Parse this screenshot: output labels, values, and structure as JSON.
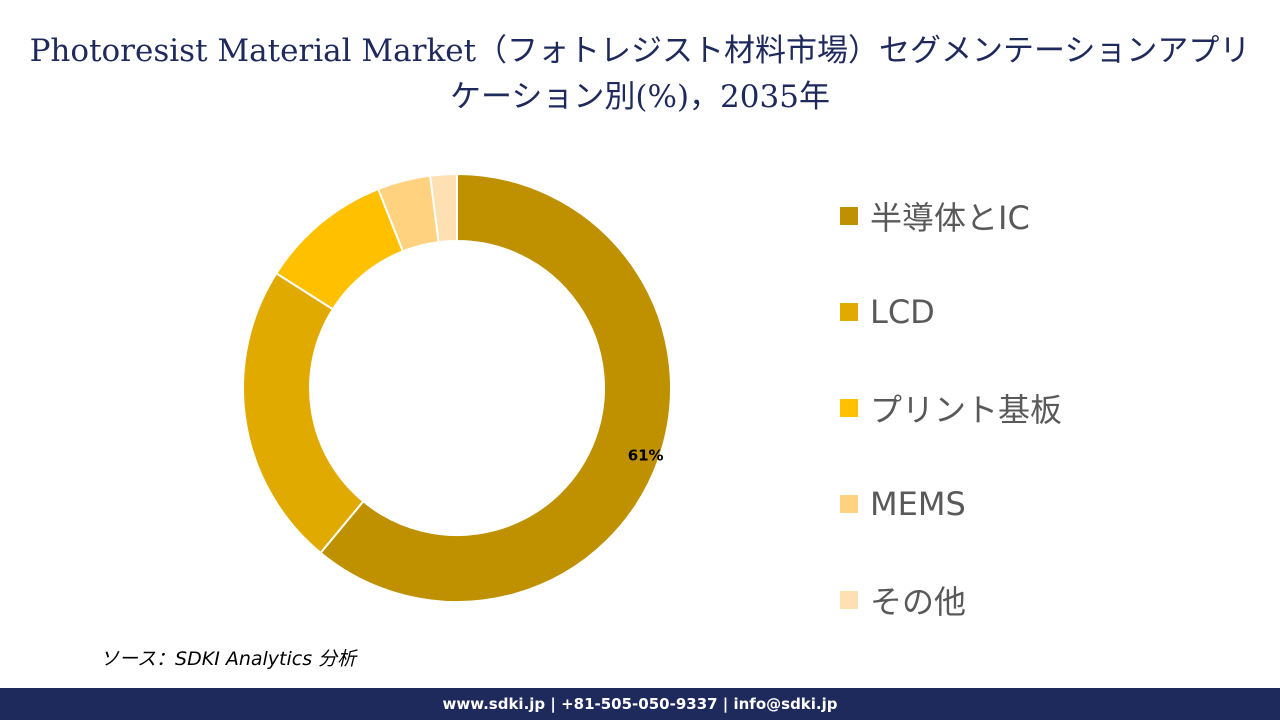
{
  "chart_data": {
    "type": "pie",
    "title": "Photoresist Material Market（フォトレジスト材料市場）セグメンテーションアプリケーション別(%)，2035年",
    "donut": true,
    "categories": [
      "半導体とIC",
      "LCD",
      "プリント基板",
      "MEMS",
      "その他"
    ],
    "values": [
      61,
      23,
      10,
      4,
      2
    ],
    "colors": [
      "#bf9000",
      "#e0aa00",
      "#ffc000",
      "#ffd280",
      "#ffe0b3"
    ],
    "data_labels": [
      {
        "category": "半導体とIC",
        "text": "61%"
      }
    ],
    "legend_position": "right"
  },
  "source": "ソース：SDKI Analytics 分析",
  "footer": {
    "text": "www.sdki.jp | +81-505-050-9337 | info@sdki.jp"
  }
}
